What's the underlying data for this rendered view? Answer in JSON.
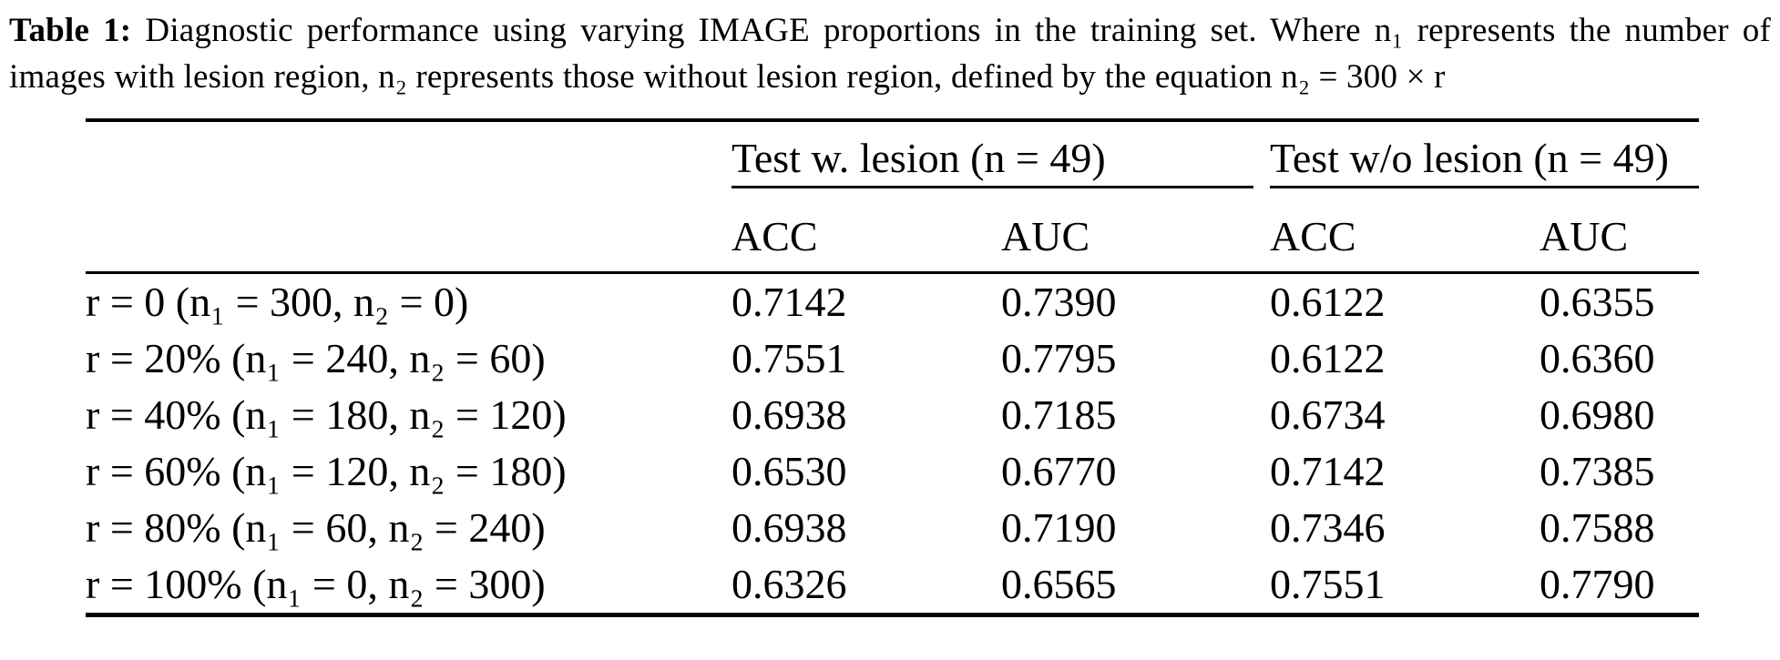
{
  "caption": {
    "label": "Table 1:",
    "text": "Diagnostic performance using varying IMAGE proportions in the training set. Where n₁ represents the number of images with lesion region, n₂ represents those without lesion region, defined by the equation n₂ = 300 × r"
  },
  "table": {
    "column_groups": [
      {
        "label": "Test w. lesion (n = 49)"
      },
      {
        "label": "Test w/o lesion (n = 49)"
      }
    ],
    "sub_headers": [
      "ACC",
      "AUC",
      "ACC",
      "AUC"
    ],
    "rows": [
      {
        "label": "r = 0 (n₁ = 300, n₂ = 0)",
        "values": [
          "0.7142",
          "0.7390",
          "0.6122",
          "0.6355"
        ]
      },
      {
        "label": "r = 20% (n₁ = 240, n₂ = 60)",
        "values": [
          "0.7551",
          "0.7795",
          "0.6122",
          "0.6360"
        ]
      },
      {
        "label": "r = 40% (n₁ = 180, n₂ = 120)",
        "values": [
          "0.6938",
          "0.7185",
          "0.6734",
          "0.6980"
        ]
      },
      {
        "label": "r = 60% (n₁ = 120, n₂ = 180)",
        "values": [
          "0.6530",
          "0.6770",
          "0.7142",
          "0.7385"
        ]
      },
      {
        "label": "r = 80% (n₁ = 60, n₂ = 240)",
        "values": [
          "0.6938",
          "0.7190",
          "0.7346",
          "0.7588"
        ]
      },
      {
        "label": "r = 100% (n₁ = 0, n₂ = 300)",
        "values": [
          "0.6326",
          "0.6565",
          "0.7551",
          "0.7790"
        ]
      }
    ]
  }
}
